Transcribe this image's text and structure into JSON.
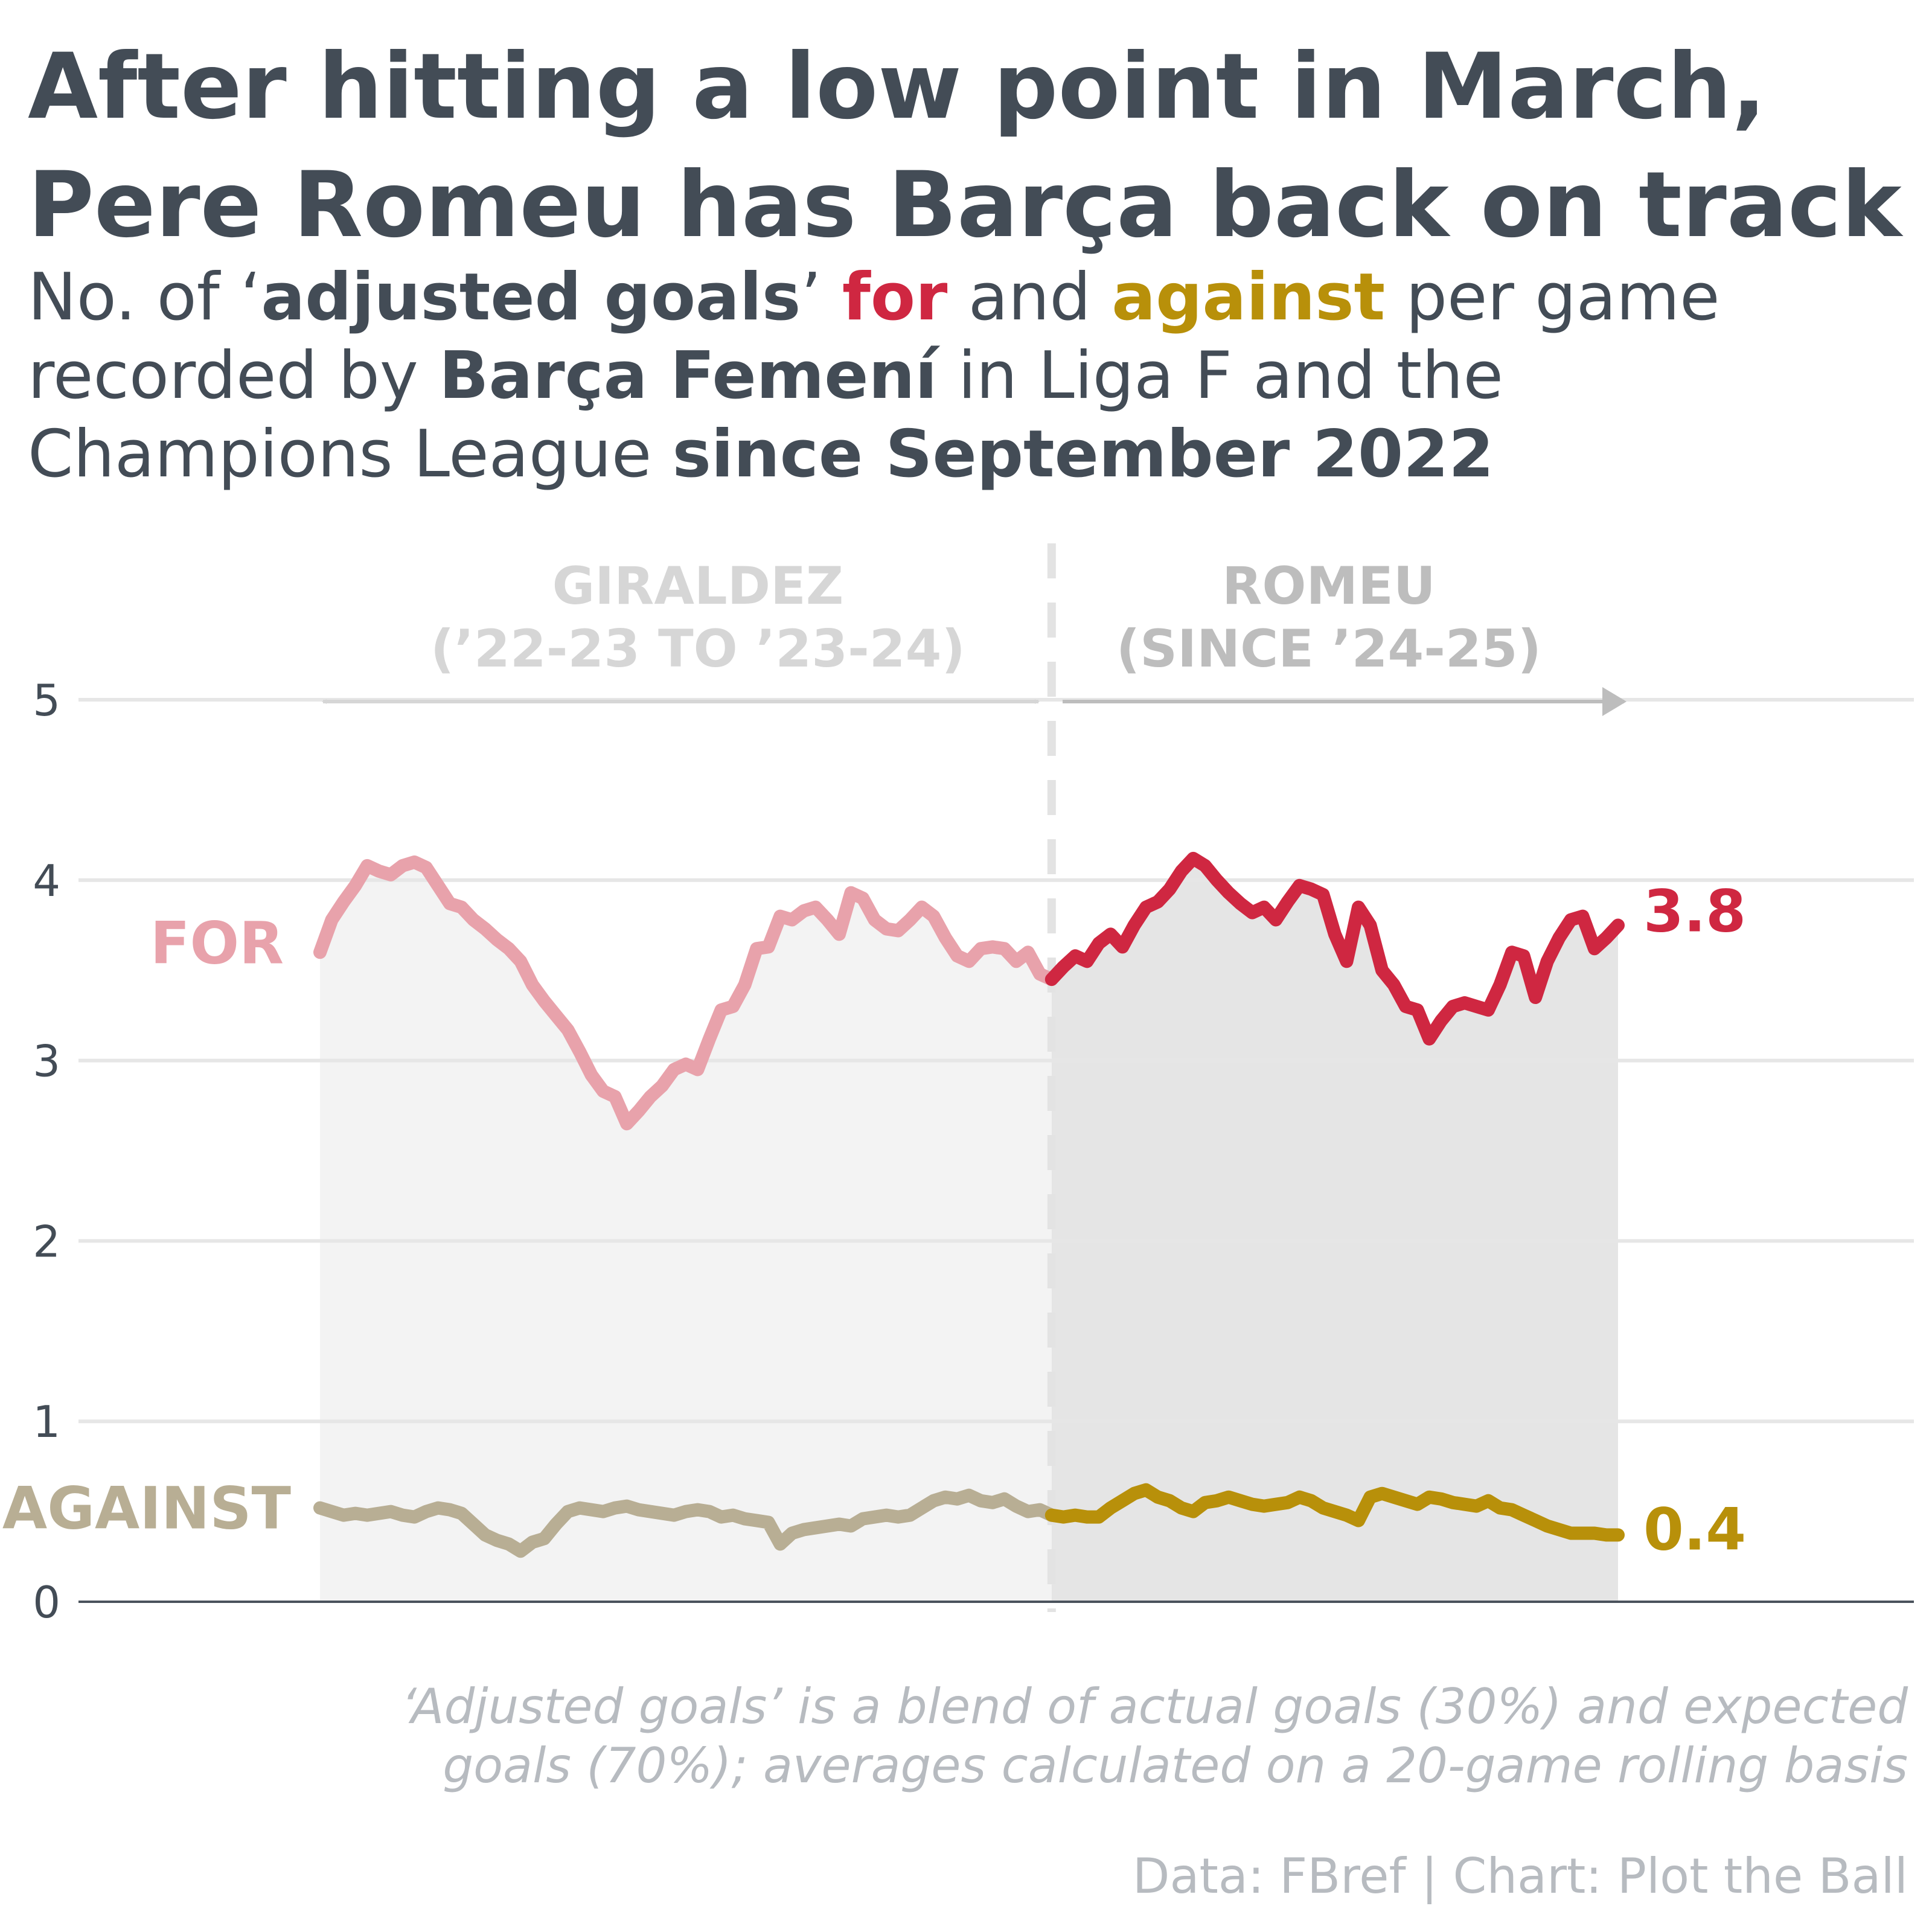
{
  "title_lines": [
    "After hitting a low point in March,",
    "Pere Romeu has Barça back on track"
  ],
  "subtitle": {
    "l1_a": "No. of ‘",
    "l1_b": "adjusted goals",
    "l1_c": "’ ",
    "l1_for": "for",
    "l1_d": " and ",
    "l1_against": "against",
    "l1_e": " per game",
    "l2_a": "recorded by ",
    "l2_b": "Barça Femení",
    "l2_c": " in Liga F and the",
    "l3_a": "Champions League ",
    "l3_b": "since September 2022"
  },
  "periods": {
    "giraldez": [
      "GIRALDEZ",
      "(’22-23 TO ’23-24)"
    ],
    "romeu": [
      "ROMEU",
      "(SINCE ’24-25)"
    ]
  },
  "series_labels": {
    "for": "FOR",
    "against": "AGAINST"
  },
  "end_labels": {
    "for": "3.8",
    "against": "0.4"
  },
  "colors": {
    "for_giraldez": "#e8a2ab",
    "for_romeu": "#cf2741",
    "against_giraldez": "#b8ae94",
    "against_romeu": "#b8900a",
    "area_giraldez": "#f3f3f3",
    "area_romeu": "#e5e5e5",
    "grid": "#e6e6e6",
    "text_dark": "#434c56",
    "annotation_giraldez": "#d6d6d6",
    "annotation_romeu": "#bdbdbd"
  },
  "chart_data": {
    "type": "line",
    "x_axis": "games (chronological)",
    "ylim": [
      0,
      5
    ],
    "y_ticks": [
      0,
      1,
      2,
      3,
      4,
      5
    ],
    "grid": "horizontal",
    "split_index": 62,
    "series": [
      {
        "name": "FOR",
        "values": [
          3.6,
          3.78,
          3.88,
          3.97,
          4.08,
          4.05,
          4.03,
          4.08,
          4.1,
          4.07,
          3.97,
          3.87,
          3.85,
          3.78,
          3.73,
          3.67,
          3.62,
          3.55,
          3.42,
          3.33,
          3.25,
          3.17,
          3.05,
          2.92,
          2.83,
          2.8,
          2.65,
          2.72,
          2.8,
          2.86,
          2.95,
          2.98,
          2.95,
          3.12,
          3.28,
          3.3,
          3.42,
          3.62,
          3.63,
          3.8,
          3.78,
          3.83,
          3.85,
          3.78,
          3.7,
          3.93,
          3.9,
          3.78,
          3.73,
          3.72,
          3.78,
          3.85,
          3.8,
          3.68,
          3.58,
          3.55,
          3.62,
          3.63,
          3.62,
          3.55,
          3.6,
          3.48,
          3.45,
          3.52,
          3.58,
          3.55,
          3.65,
          3.7,
          3.63,
          3.75,
          3.85,
          3.88,
          3.95,
          4.05,
          4.12,
          4.08,
          4.0,
          3.93,
          3.87,
          3.82,
          3.85,
          3.78,
          3.88,
          3.97,
          3.95,
          3.92,
          3.7,
          3.55,
          3.85,
          3.75,
          3.5,
          3.42,
          3.3,
          3.28,
          3.12,
          3.22,
          3.3,
          3.32,
          3.3,
          3.28,
          3.42,
          3.6,
          3.58,
          3.35,
          3.55,
          3.68,
          3.78,
          3.8,
          3.62,
          3.68,
          3.75
        ]
      },
      {
        "name": "AGAINST",
        "values": [
          0.52,
          0.5,
          0.48,
          0.49,
          0.48,
          0.49,
          0.5,
          0.48,
          0.47,
          0.5,
          0.52,
          0.51,
          0.49,
          0.43,
          0.37,
          0.34,
          0.32,
          0.28,
          0.33,
          0.35,
          0.43,
          0.5,
          0.52,
          0.51,
          0.5,
          0.52,
          0.53,
          0.51,
          0.5,
          0.49,
          0.48,
          0.5,
          0.51,
          0.5,
          0.47,
          0.48,
          0.46,
          0.45,
          0.44,
          0.32,
          0.38,
          0.4,
          0.41,
          0.42,
          0.43,
          0.42,
          0.46,
          0.47,
          0.48,
          0.47,
          0.48,
          0.52,
          0.56,
          0.58,
          0.57,
          0.59,
          0.56,
          0.55,
          0.57,
          0.53,
          0.5,
          0.51,
          0.48,
          0.47,
          0.48,
          0.47,
          0.47,
          0.52,
          0.56,
          0.6,
          0.62,
          0.58,
          0.56,
          0.52,
          0.5,
          0.55,
          0.56,
          0.58,
          0.56,
          0.54,
          0.53,
          0.54,
          0.55,
          0.58,
          0.56,
          0.52,
          0.5,
          0.48,
          0.45,
          0.58,
          0.6,
          0.58,
          0.56,
          0.54,
          0.58,
          0.57,
          0.55,
          0.54,
          0.53,
          0.56,
          0.52,
          0.51,
          0.48,
          0.45,
          0.42,
          0.4,
          0.38,
          0.38,
          0.38,
          0.37,
          0.37
        ]
      }
    ]
  },
  "note_lines": [
    "‘Adjusted goals’ is a blend of actual goals (30%) and expected",
    "goals (70%); averages calculated on a 20-game rolling basis"
  ],
  "source": "Data: FBref | Chart: Plot the Ball"
}
